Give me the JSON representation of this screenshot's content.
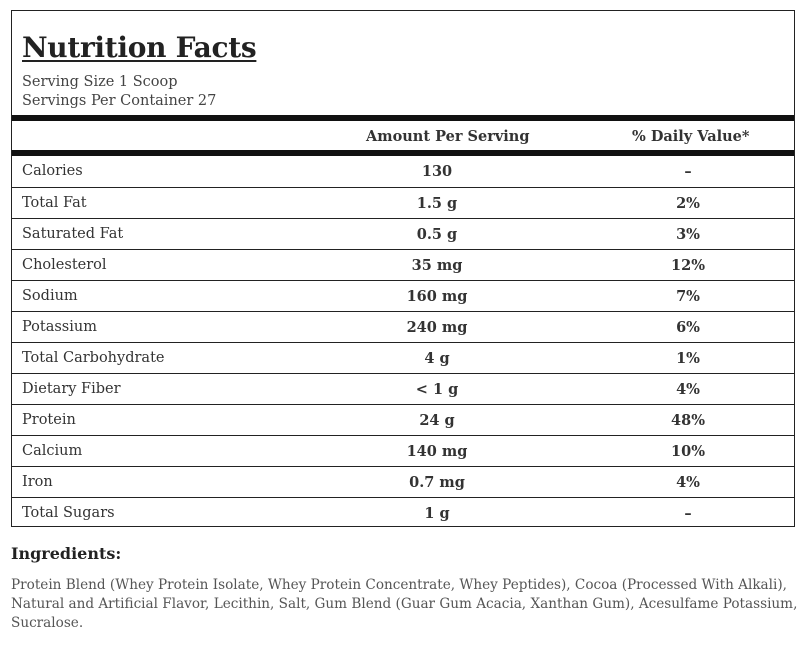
{
  "label": {
    "title": "Nutrition Facts",
    "serving_size": "Serving Size 1 Scoop",
    "servings_per_container": "Servings Per Container 27",
    "header": {
      "amount": "Amount Per Serving",
      "daily_value": "% Daily Value*"
    },
    "rows": [
      {
        "name": "Calories",
        "amount": "130",
        "dv": "–"
      },
      {
        "name": "Total Fat",
        "amount": "1.5 g",
        "dv": "2%"
      },
      {
        "name": "Saturated Fat",
        "amount": "0.5 g",
        "dv": "3%"
      },
      {
        "name": "Cholesterol",
        "amount": "35 mg",
        "dv": "12%"
      },
      {
        "name": "Sodium",
        "amount": "160 mg",
        "dv": "7%"
      },
      {
        "name": "Potassium",
        "amount": "240 mg",
        "dv": "6%"
      },
      {
        "name": "Total Carbohydrate",
        "amount": "4 g",
        "dv": "1%"
      },
      {
        "name": "Dietary Fiber",
        "amount": "< 1 g",
        "dv": "4%"
      },
      {
        "name": "Protein",
        "amount": "24 g",
        "dv": "48%"
      },
      {
        "name": "Calcium",
        "amount": "140 mg",
        "dv": "10%"
      },
      {
        "name": "Iron",
        "amount": "0.7 mg",
        "dv": "4%"
      },
      {
        "name": "Total Sugars",
        "amount": "1 g",
        "dv": "–"
      }
    ]
  },
  "ingredients": {
    "title": "Ingredients:",
    "text": "Protein Blend (Whey Protein Isolate, Whey Protein Concentrate, Whey Peptides), Cocoa (Processed With Alkali), Natural and Artificial Flavor, Lecithin, Salt, Gum Blend (Guar Gum Acacia, Xanthan Gum), Acesulfame Potassium, Sucralose."
  }
}
